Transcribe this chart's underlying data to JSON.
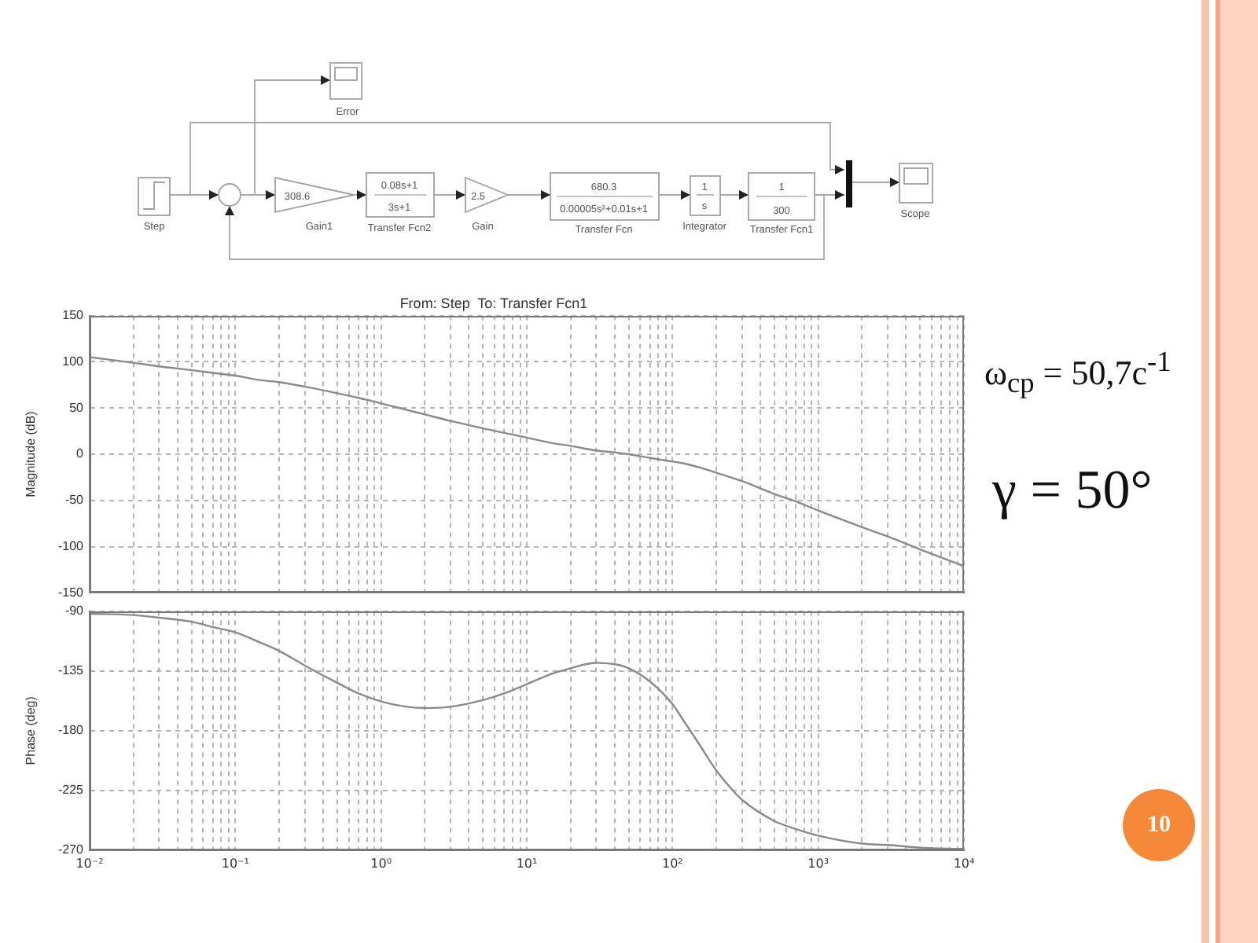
{
  "chart_data": [
    {
      "type": "other",
      "annotations": [
        "Error",
        "Step",
        "308.6",
        "Gain1",
        "0.08s+1",
        "3s+1",
        "Transfer Fcn2",
        "2.5",
        "Gain",
        "680.3",
        "0.00005s²+0.01s+1",
        "Transfer Fcn",
        "1",
        "s",
        "Integrator",
        "1",
        "300",
        "Transfer Fcn1",
        "Scope"
      ]
    },
    {
      "type": "line",
      "title": "From: Step  To: Transfer Fcn1",
      "ylabel": "Magnitude (dB)",
      "x": [
        0.01,
        0.02,
        0.03,
        0.05,
        0.07,
        0.1,
        0.15,
        0.2,
        0.3,
        0.5,
        0.7,
        1,
        1.5,
        2,
        3,
        5,
        7,
        10,
        15,
        20,
        30,
        40,
        50,
        70,
        100,
        120,
        150,
        200,
        250,
        300,
        500,
        700,
        1000,
        2000,
        3000,
        5000,
        10000
      ],
      "series": [
        {
          "color": "#8a8a8a",
          "values": [
            105,
            99,
            95,
            91,
            88,
            85,
            80,
            78,
            73,
            66,
            61,
            55,
            48,
            43,
            36,
            28,
            23,
            18,
            12,
            9,
            4,
            2,
            0,
            -4,
            -8,
            -10,
            -14,
            -20,
            -25,
            -29,
            -43,
            -51,
            -61,
            -79,
            -89,
            -103,
            -121
          ]
        }
      ],
      "log": "x",
      "xlim": [
        0.01,
        10000
      ],
      "xticks": [
        {
          "value": 0.01,
          "label": null
        },
        {
          "value": 0.1,
          "label": null
        },
        {
          "value": 1,
          "label": null
        },
        {
          "value": 10,
          "label": null
        },
        {
          "value": 100,
          "label": null
        },
        {
          "value": 1000,
          "label": null
        },
        {
          "value": 10000,
          "label": null
        }
      ],
      "ylim": [
        -150,
        150
      ],
      "yticks": [
        -150,
        -100,
        -50,
        0,
        50,
        100,
        150
      ],
      "grid": true,
      "tick_labels": "y",
      "annotations": [
        "ω$_{ср}$ = 50,7с$^{-1}$",
        "γ = 50°"
      ]
    },
    {
      "type": "line",
      "ylabel": "Phase (deg)",
      "x": [
        0.01,
        0.02,
        0.03,
        0.05,
        0.07,
        0.1,
        0.15,
        0.2,
        0.3,
        0.5,
        0.7,
        1,
        1.5,
        2,
        3,
        5,
        7,
        10,
        15,
        20,
        30,
        40,
        50,
        70,
        100,
        120,
        150,
        200,
        250,
        300,
        500,
        700,
        1000,
        2000,
        3000,
        5000,
        10000
      ],
      "series": [
        {
          "color": "#8a8a8a",
          "values": [
            -92,
            -93,
            -95,
            -98,
            -102,
            -106,
            -114,
            -120,
            -131,
            -144,
            -152,
            -158,
            -162,
            -163,
            -162,
            -157,
            -152,
            -145,
            -137,
            -133,
            -129,
            -130,
            -133,
            -143,
            -160,
            -173,
            -189,
            -210,
            -223,
            -232,
            -248,
            -254,
            -259,
            -265,
            -266,
            -268,
            -269
          ]
        }
      ],
      "log": "x",
      "xlim": [
        0.01,
        10000
      ],
      "xticks": [
        {
          "value": 0.01,
          "label": "10⁻²"
        },
        {
          "value": 0.1,
          "label": "10⁻¹"
        },
        {
          "value": 1,
          "label": "10⁰"
        },
        {
          "value": 10,
          "label": "10¹"
        },
        {
          "value": 100,
          "label": "10²"
        },
        {
          "value": 1000,
          "label": "10³"
        },
        {
          "value": 10000,
          "label": "10⁴"
        }
      ],
      "ylim": [
        -270,
        -90
      ],
      "yticks": [
        -270,
        -225,
        -180,
        -135,
        -90
      ],
      "grid": true,
      "annotations": [
        "10"
      ]
    }
  ]
}
